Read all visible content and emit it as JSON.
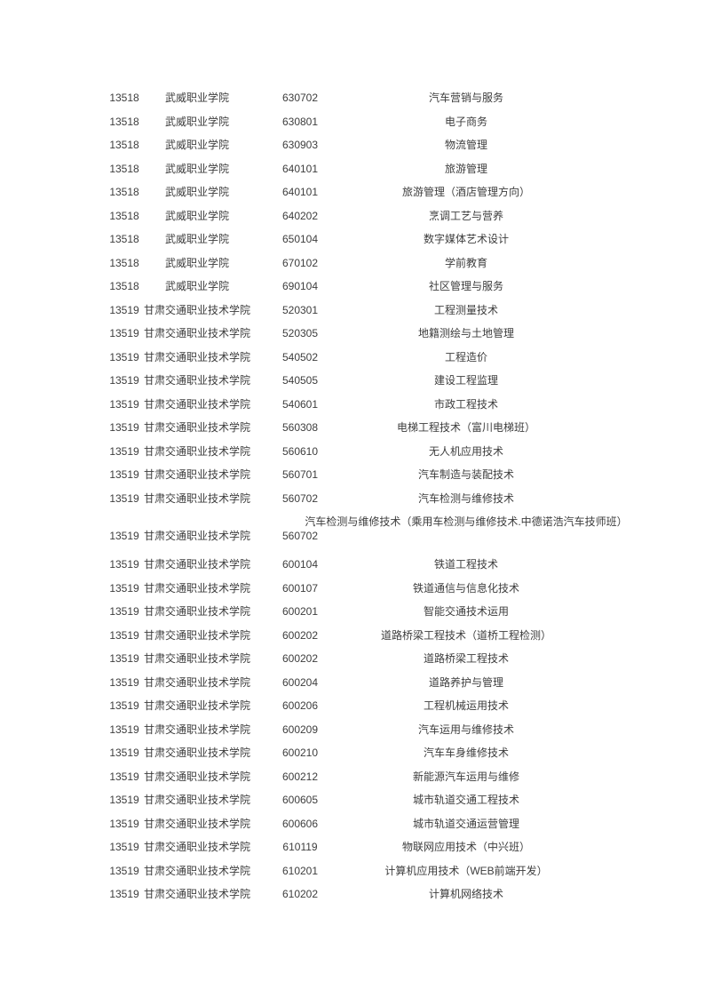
{
  "page": {
    "background": "#ffffff",
    "text_color": "#3d3d3d"
  },
  "table": {
    "rows": [
      {
        "school_code": "13518",
        "school_name": "武威职业学院",
        "major_code": "630702",
        "major_name": "汽车营销与服务"
      },
      {
        "school_code": "13518",
        "school_name": "武威职业学院",
        "major_code": "630801",
        "major_name": "电子商务"
      },
      {
        "school_code": "13518",
        "school_name": "武威职业学院",
        "major_code": "630903",
        "major_name": "物流管理"
      },
      {
        "school_code": "13518",
        "school_name": "武威职业学院",
        "major_code": "640101",
        "major_name": "旅游管理"
      },
      {
        "school_code": "13518",
        "school_name": "武威职业学院",
        "major_code": "640101",
        "major_name": "旅游管理（酒店管理方向）"
      },
      {
        "school_code": "13518",
        "school_name": "武威职业学院",
        "major_code": "640202",
        "major_name": "烹调工艺与营养"
      },
      {
        "school_code": "13518",
        "school_name": "武威职业学院",
        "major_code": "650104",
        "major_name": "数字媒体艺术设计"
      },
      {
        "school_code": "13518",
        "school_name": "武威职业学院",
        "major_code": "670102",
        "major_name": "学前教育"
      },
      {
        "school_code": "13518",
        "school_name": "武威职业学院",
        "major_code": "690104",
        "major_name": "社区管理与服务"
      },
      {
        "school_code": "13519",
        "school_name": "甘肃交通职业技术学院",
        "major_code": "520301",
        "major_name": "工程测量技术"
      },
      {
        "school_code": "13519",
        "school_name": "甘肃交通职业技术学院",
        "major_code": "520305",
        "major_name": "地籍测绘与土地管理"
      },
      {
        "school_code": "13519",
        "school_name": "甘肃交通职业技术学院",
        "major_code": "540502",
        "major_name": "工程造价"
      },
      {
        "school_code": "13519",
        "school_name": "甘肃交通职业技术学院",
        "major_code": "540505",
        "major_name": "建设工程监理"
      },
      {
        "school_code": "13519",
        "school_name": "甘肃交通职业技术学院",
        "major_code": "540601",
        "major_name": "市政工程技术"
      },
      {
        "school_code": "13519",
        "school_name": "甘肃交通职业技术学院",
        "major_code": "560308",
        "major_name": "电梯工程技术（富川电梯班）"
      },
      {
        "school_code": "13519",
        "school_name": "甘肃交通职业技术学院",
        "major_code": "560610",
        "major_name": "无人机应用技术"
      },
      {
        "school_code": "13519",
        "school_name": "甘肃交通职业技术学院",
        "major_code": "560701",
        "major_name": "汽车制造与装配技术"
      },
      {
        "school_code": "13519",
        "school_name": "甘肃交通职业技术学院",
        "major_code": "560702",
        "major_name": "汽车检测与维修技术"
      },
      {
        "school_code": "13519",
        "school_name": "甘肃交通职业技术学院",
        "major_code": "560702",
        "major_name": "汽车检测与维修技术（乘用车检测与维修技术.中德诺浩汽车技师班）"
      },
      {
        "school_code": "13519",
        "school_name": "甘肃交通职业技术学院",
        "major_code": "600104",
        "major_name": "铁道工程技术"
      },
      {
        "school_code": "13519",
        "school_name": "甘肃交通职业技术学院",
        "major_code": "600107",
        "major_name": "铁道通信与信息化技术"
      },
      {
        "school_code": "13519",
        "school_name": "甘肃交通职业技术学院",
        "major_code": "600201",
        "major_name": "智能交通技术运用"
      },
      {
        "school_code": "13519",
        "school_name": "甘肃交通职业技术学院",
        "major_code": "600202",
        "major_name": "道路桥梁工程技术（道桥工程检测）"
      },
      {
        "school_code": "13519",
        "school_name": "甘肃交通职业技术学院",
        "major_code": "600202",
        "major_name": "道路桥梁工程技术"
      },
      {
        "school_code": "13519",
        "school_name": "甘肃交通职业技术学院",
        "major_code": "600204",
        "major_name": "道路养护与管理"
      },
      {
        "school_code": "13519",
        "school_name": "甘肃交通职业技术学院",
        "major_code": "600206",
        "major_name": "工程机械运用技术"
      },
      {
        "school_code": "13519",
        "school_name": "甘肃交通职业技术学院",
        "major_code": "600209",
        "major_name": "汽车运用与维修技术"
      },
      {
        "school_code": "13519",
        "school_name": "甘肃交通职业技术学院",
        "major_code": "600210",
        "major_name": "汽车车身维修技术"
      },
      {
        "school_code": "13519",
        "school_name": "甘肃交通职业技术学院",
        "major_code": "600212",
        "major_name": "新能源汽车运用与维修"
      },
      {
        "school_code": "13519",
        "school_name": "甘肃交通职业技术学院",
        "major_code": "600605",
        "major_name": "城市轨道交通工程技术"
      },
      {
        "school_code": "13519",
        "school_name": "甘肃交通职业技术学院",
        "major_code": "600606",
        "major_name": "城市轨道交通运营管理"
      },
      {
        "school_code": "13519",
        "school_name": "甘肃交通职业技术学院",
        "major_code": "610119",
        "major_name": "物联网应用技术（中兴班）"
      },
      {
        "school_code": "13519",
        "school_name": "甘肃交通职业技术学院",
        "major_code": "610201",
        "major_name": "计算机应用技术（WEB前端开发）"
      },
      {
        "school_code": "13519",
        "school_name": "甘肃交通职业技术学院",
        "major_code": "610202",
        "major_name": "计算机网络技术"
      }
    ]
  }
}
